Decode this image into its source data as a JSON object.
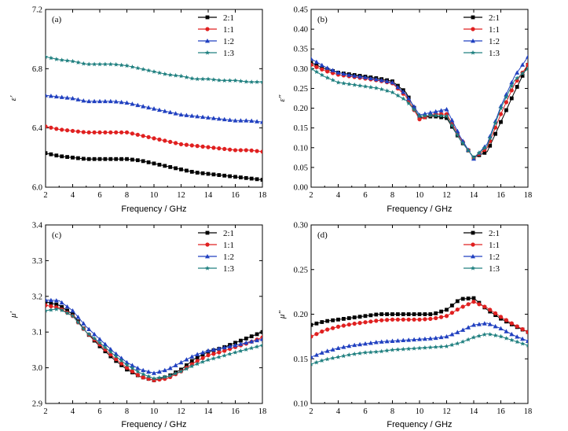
{
  "chart_data": [
    {
      "type": "line",
      "panel_label": "(a)",
      "xlabel": "Frequency / GHz",
      "ylabel": "ε′",
      "xlim": [
        2,
        18
      ],
      "ylim": [
        6.0,
        7.2
      ],
      "xticks": [
        "2",
        "4",
        "6",
        "8",
        "10",
        "12",
        "14",
        "16",
        "18"
      ],
      "yticks": [
        "6.0",
        "6.4",
        "6.8",
        "7.2"
      ],
      "legend_position": "top-right",
      "x": [
        2,
        3,
        4,
        5,
        6,
        7,
        8,
        9,
        10,
        11,
        12,
        13,
        14,
        15,
        16,
        17,
        18
      ],
      "series": [
        {
          "name": "2:1",
          "color": "#000000",
          "marker": "square",
          "values": [
            6.23,
            6.21,
            6.2,
            6.19,
            6.19,
            6.19,
            6.19,
            6.18,
            6.16,
            6.14,
            6.12,
            6.1,
            6.09,
            6.08,
            6.07,
            6.06,
            6.05
          ]
        },
        {
          "name": "1:1",
          "color": "#e02020",
          "marker": "circle",
          "values": [
            6.41,
            6.39,
            6.38,
            6.37,
            6.37,
            6.37,
            6.37,
            6.35,
            6.33,
            6.31,
            6.29,
            6.28,
            6.27,
            6.26,
            6.25,
            6.25,
            6.24
          ]
        },
        {
          "name": "1:2",
          "color": "#2040c0",
          "marker": "triangle",
          "values": [
            6.62,
            6.61,
            6.6,
            6.58,
            6.58,
            6.58,
            6.57,
            6.55,
            6.53,
            6.51,
            6.49,
            6.48,
            6.47,
            6.46,
            6.45,
            6.45,
            6.44
          ]
        },
        {
          "name": "1:3",
          "color": "#208080",
          "marker": "star",
          "values": [
            6.88,
            6.86,
            6.85,
            6.83,
            6.83,
            6.83,
            6.82,
            6.8,
            6.78,
            6.76,
            6.75,
            6.73,
            6.73,
            6.72,
            6.72,
            6.71,
            6.71
          ]
        }
      ]
    },
    {
      "type": "line",
      "panel_label": "(b)",
      "xlabel": "Frequency / GHz",
      "ylabel": "ε″",
      "xlim": [
        2,
        18
      ],
      "ylim": [
        0,
        0.45
      ],
      "xticks": [
        "2",
        "4",
        "6",
        "8",
        "10",
        "12",
        "14",
        "16",
        "18"
      ],
      "yticks": [
        "0.00",
        "0.05",
        "0.10",
        "0.15",
        "0.20",
        "0.25",
        "0.30",
        "0.35",
        "0.40",
        "0.45"
      ],
      "legend_position": "top-right",
      "x": [
        2,
        3,
        4,
        5,
        6,
        7,
        8,
        9,
        10,
        11,
        12,
        13,
        14,
        15,
        16,
        17,
        18
      ],
      "series": [
        {
          "name": "2:1",
          "color": "#000000",
          "marker": "square",
          "values": [
            0.315,
            0.3,
            0.29,
            0.285,
            0.28,
            0.275,
            0.268,
            0.24,
            0.175,
            0.18,
            0.175,
            0.12,
            0.075,
            0.09,
            0.165,
            0.24,
            0.31
          ]
        },
        {
          "name": "1:1",
          "color": "#e02020",
          "marker": "circle",
          "values": [
            0.31,
            0.295,
            0.285,
            0.28,
            0.275,
            0.27,
            0.263,
            0.23,
            0.172,
            0.185,
            0.185,
            0.125,
            0.073,
            0.1,
            0.185,
            0.26,
            0.31
          ]
        },
        {
          "name": "1:2",
          "color": "#2040c0",
          "marker": "triangle",
          "values": [
            0.325,
            0.305,
            0.29,
            0.283,
            0.278,
            0.272,
            0.265,
            0.235,
            0.183,
            0.19,
            0.197,
            0.128,
            0.072,
            0.11,
            0.205,
            0.28,
            0.33
          ]
        },
        {
          "name": "1:3",
          "color": "#208080",
          "marker": "star",
          "values": [
            0.3,
            0.28,
            0.265,
            0.26,
            0.255,
            0.25,
            0.24,
            0.22,
            0.18,
            0.182,
            0.18,
            0.12,
            0.075,
            0.105,
            0.2,
            0.27,
            0.3
          ]
        }
      ]
    },
    {
      "type": "line",
      "panel_label": "(c)",
      "xlabel": "Frequency / GHz",
      "ylabel": "μ′",
      "xlim": [
        2,
        18
      ],
      "ylim": [
        2.9,
        3.4
      ],
      "xticks": [
        "2",
        "4",
        "6",
        "8",
        "10",
        "12",
        "14",
        "16",
        "18"
      ],
      "yticks": [
        "2.9",
        "3.0",
        "3.1",
        "3.2",
        "3.3",
        "3.4"
      ],
      "legend_position": "top-right",
      "x": [
        2,
        3,
        4,
        5,
        6,
        7,
        8,
        9,
        10,
        11,
        12,
        13,
        14,
        15,
        16,
        17,
        18
      ],
      "series": [
        {
          "name": "2:1",
          "color": "#000000",
          "marker": "square",
          "values": [
            3.185,
            3.175,
            3.15,
            3.1,
            3.06,
            3.025,
            2.995,
            2.975,
            2.965,
            2.975,
            2.995,
            3.025,
            3.045,
            3.055,
            3.07,
            3.085,
            3.1
          ]
        },
        {
          "name": "1:1",
          "color": "#e02020",
          "marker": "circle",
          "values": [
            3.175,
            3.168,
            3.145,
            3.1,
            3.065,
            3.03,
            3.0,
            2.975,
            2.965,
            2.97,
            2.99,
            3.015,
            3.035,
            3.045,
            3.058,
            3.07,
            3.085
          ]
        },
        {
          "name": "1:2",
          "color": "#2040c0",
          "marker": "triangle",
          "values": [
            3.19,
            3.188,
            3.16,
            3.115,
            3.08,
            3.045,
            3.015,
            2.995,
            2.985,
            2.995,
            3.015,
            3.035,
            3.048,
            3.055,
            3.063,
            3.072,
            3.08
          ]
        },
        {
          "name": "1:3",
          "color": "#208080",
          "marker": "star",
          "values": [
            3.16,
            3.165,
            3.145,
            3.1,
            3.07,
            3.038,
            3.008,
            2.985,
            2.97,
            2.975,
            2.99,
            3.008,
            3.022,
            3.032,
            3.043,
            3.053,
            3.063
          ]
        }
      ]
    },
    {
      "type": "line",
      "panel_label": "(d)",
      "xlabel": "Frequency / GHz",
      "ylabel": "μ″",
      "xlim": [
        2,
        18
      ],
      "ylim": [
        0.1,
        0.3
      ],
      "xticks": [
        "2",
        "4",
        "6",
        "8",
        "10",
        "12",
        "14",
        "16",
        "18"
      ],
      "yticks": [
        "0.10",
        "0.15",
        "0.20",
        "0.25",
        "0.30"
      ],
      "legend_position": "top-right",
      "x": [
        2,
        3,
        4,
        5,
        6,
        7,
        8,
        9,
        10,
        11,
        12,
        13,
        14,
        15,
        16,
        17,
        18
      ],
      "series": [
        {
          "name": "2:1",
          "color": "#000000",
          "marker": "square",
          "values": [
            0.188,
            0.192,
            0.194,
            0.196,
            0.198,
            0.2,
            0.2,
            0.2,
            0.2,
            0.2,
            0.205,
            0.217,
            0.218,
            0.205,
            0.195,
            0.187,
            0.18
          ]
        },
        {
          "name": "1:1",
          "color": "#e02020",
          "marker": "circle",
          "values": [
            0.175,
            0.182,
            0.186,
            0.189,
            0.191,
            0.193,
            0.194,
            0.194,
            0.194,
            0.195,
            0.198,
            0.207,
            0.214,
            0.207,
            0.197,
            0.188,
            0.18
          ]
        },
        {
          "name": "1:2",
          "color": "#2040c0",
          "marker": "triangle",
          "values": [
            0.152,
            0.158,
            0.162,
            0.165,
            0.167,
            0.169,
            0.17,
            0.171,
            0.172,
            0.173,
            0.175,
            0.181,
            0.188,
            0.19,
            0.184,
            0.176,
            0.17
          ]
        },
        {
          "name": "1:3",
          "color": "#208080",
          "marker": "star",
          "values": [
            0.144,
            0.149,
            0.152,
            0.155,
            0.157,
            0.158,
            0.16,
            0.161,
            0.162,
            0.163,
            0.164,
            0.168,
            0.174,
            0.178,
            0.175,
            0.17,
            0.165
          ]
        }
      ]
    }
  ]
}
